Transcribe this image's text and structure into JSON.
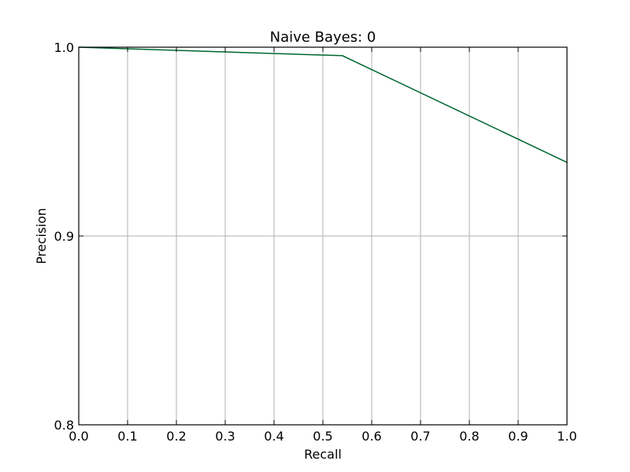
{
  "chart_data": {
    "type": "line",
    "title": "Naive Bayes: 0",
    "xlabel": "Recall",
    "ylabel": "Precision",
    "xlim": [
      0.0,
      1.0
    ],
    "ylim": [
      0.8,
      1.0
    ],
    "xticks": [
      0.0,
      0.1,
      0.2,
      0.3,
      0.4,
      0.5,
      0.6,
      0.7,
      0.8,
      0.9,
      1.0
    ],
    "xtick_labels": [
      "0.0",
      "0.1",
      "0.2",
      "0.3",
      "0.4",
      "0.5",
      "0.6",
      "0.7",
      "0.8",
      "0.9",
      "1.0"
    ],
    "yticks": [
      0.8,
      0.9,
      1.0
    ],
    "ytick_labels": [
      "0.8",
      "0.9",
      "1.0"
    ],
    "grid": true,
    "legend": "none",
    "series": [
      {
        "color": "#006633",
        "x": [
          0.0,
          0.54,
          1.0
        ],
        "y": [
          1.0,
          0.9955,
          0.939
        ]
      }
    ]
  }
}
